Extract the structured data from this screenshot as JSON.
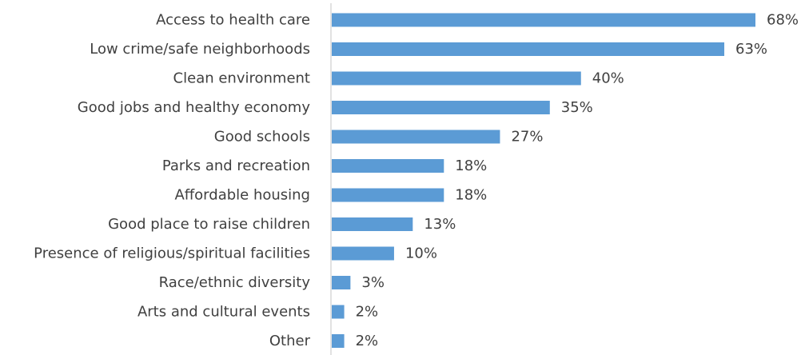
{
  "chart_data": {
    "type": "bar",
    "orientation": "horizontal",
    "title": "",
    "xlabel": "",
    "ylabel": "",
    "categories": [
      "Access to health care",
      "Low crime/safe neighborhoods",
      "Clean environment",
      "Good jobs and healthy economy",
      "Good schools",
      "Parks and recreation",
      "Affordable housing",
      "Good place to raise children",
      "Presence of religious/spiritual facilities",
      "Race/ethnic diversity",
      "Arts and cultural events",
      "Other"
    ],
    "values": [
      68,
      63,
      40,
      35,
      27,
      18,
      18,
      13,
      10,
      3,
      2,
      2
    ],
    "value_labels": [
      "68%",
      "63%",
      "40%",
      "35%",
      "27%",
      "18%",
      "18%",
      "13%",
      "10%",
      "3%",
      "2%",
      "2%"
    ],
    "value_unit": "%",
    "xlim": [
      0,
      68
    ],
    "grid": false,
    "legend": "none",
    "bar_color": "#5B9BD5",
    "axis_color": "#D9D9D9",
    "text_color": "#404040"
  }
}
